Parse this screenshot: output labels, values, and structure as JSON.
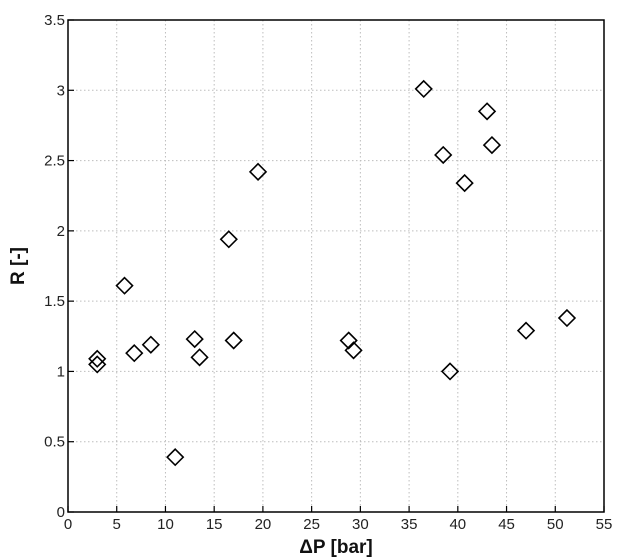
{
  "chart_data": {
    "type": "scatter",
    "xlabel": "ΔP [bar]",
    "ylabel": "R [-]",
    "xlim": [
      0,
      55
    ],
    "ylim": [
      0,
      3.5
    ],
    "x_ticks": [
      0,
      5,
      10,
      15,
      20,
      25,
      30,
      35,
      40,
      45,
      50,
      55
    ],
    "y_ticks": [
      0,
      0.5,
      1,
      1.5,
      2,
      2.5,
      3,
      3.5
    ],
    "x_tick_labels": [
      "0",
      "5",
      "10",
      "15",
      "20",
      "25",
      "30",
      "35",
      "40",
      "45",
      "50",
      "55"
    ],
    "y_tick_labels": [
      "0",
      "0.5",
      "1",
      "1.5",
      "2",
      "2.5",
      "3",
      "3.5"
    ],
    "grid": true,
    "marker": "diamond-open",
    "series": [
      {
        "points": [
          {
            "x": 3.0,
            "y": 1.09
          },
          {
            "x": 3.0,
            "y": 1.05
          },
          {
            "x": 5.8,
            "y": 1.61
          },
          {
            "x": 6.8,
            "y": 1.13
          },
          {
            "x": 8.5,
            "y": 1.19
          },
          {
            "x": 11.0,
            "y": 0.39
          },
          {
            "x": 13.0,
            "y": 1.23
          },
          {
            "x": 13.5,
            "y": 1.1
          },
          {
            "x": 16.5,
            "y": 1.94
          },
          {
            "x": 17.0,
            "y": 1.22
          },
          {
            "x": 19.5,
            "y": 2.42
          },
          {
            "x": 28.8,
            "y": 1.22
          },
          {
            "x": 29.3,
            "y": 1.15
          },
          {
            "x": 36.5,
            "y": 3.01
          },
          {
            "x": 38.5,
            "y": 2.54
          },
          {
            "x": 39.2,
            "y": 1.0
          },
          {
            "x": 40.7,
            "y": 2.34
          },
          {
            "x": 43.0,
            "y": 2.85
          },
          {
            "x": 43.5,
            "y": 2.61
          },
          {
            "x": 47.0,
            "y": 1.29
          },
          {
            "x": 51.2,
            "y": 1.38
          }
        ]
      }
    ]
  }
}
